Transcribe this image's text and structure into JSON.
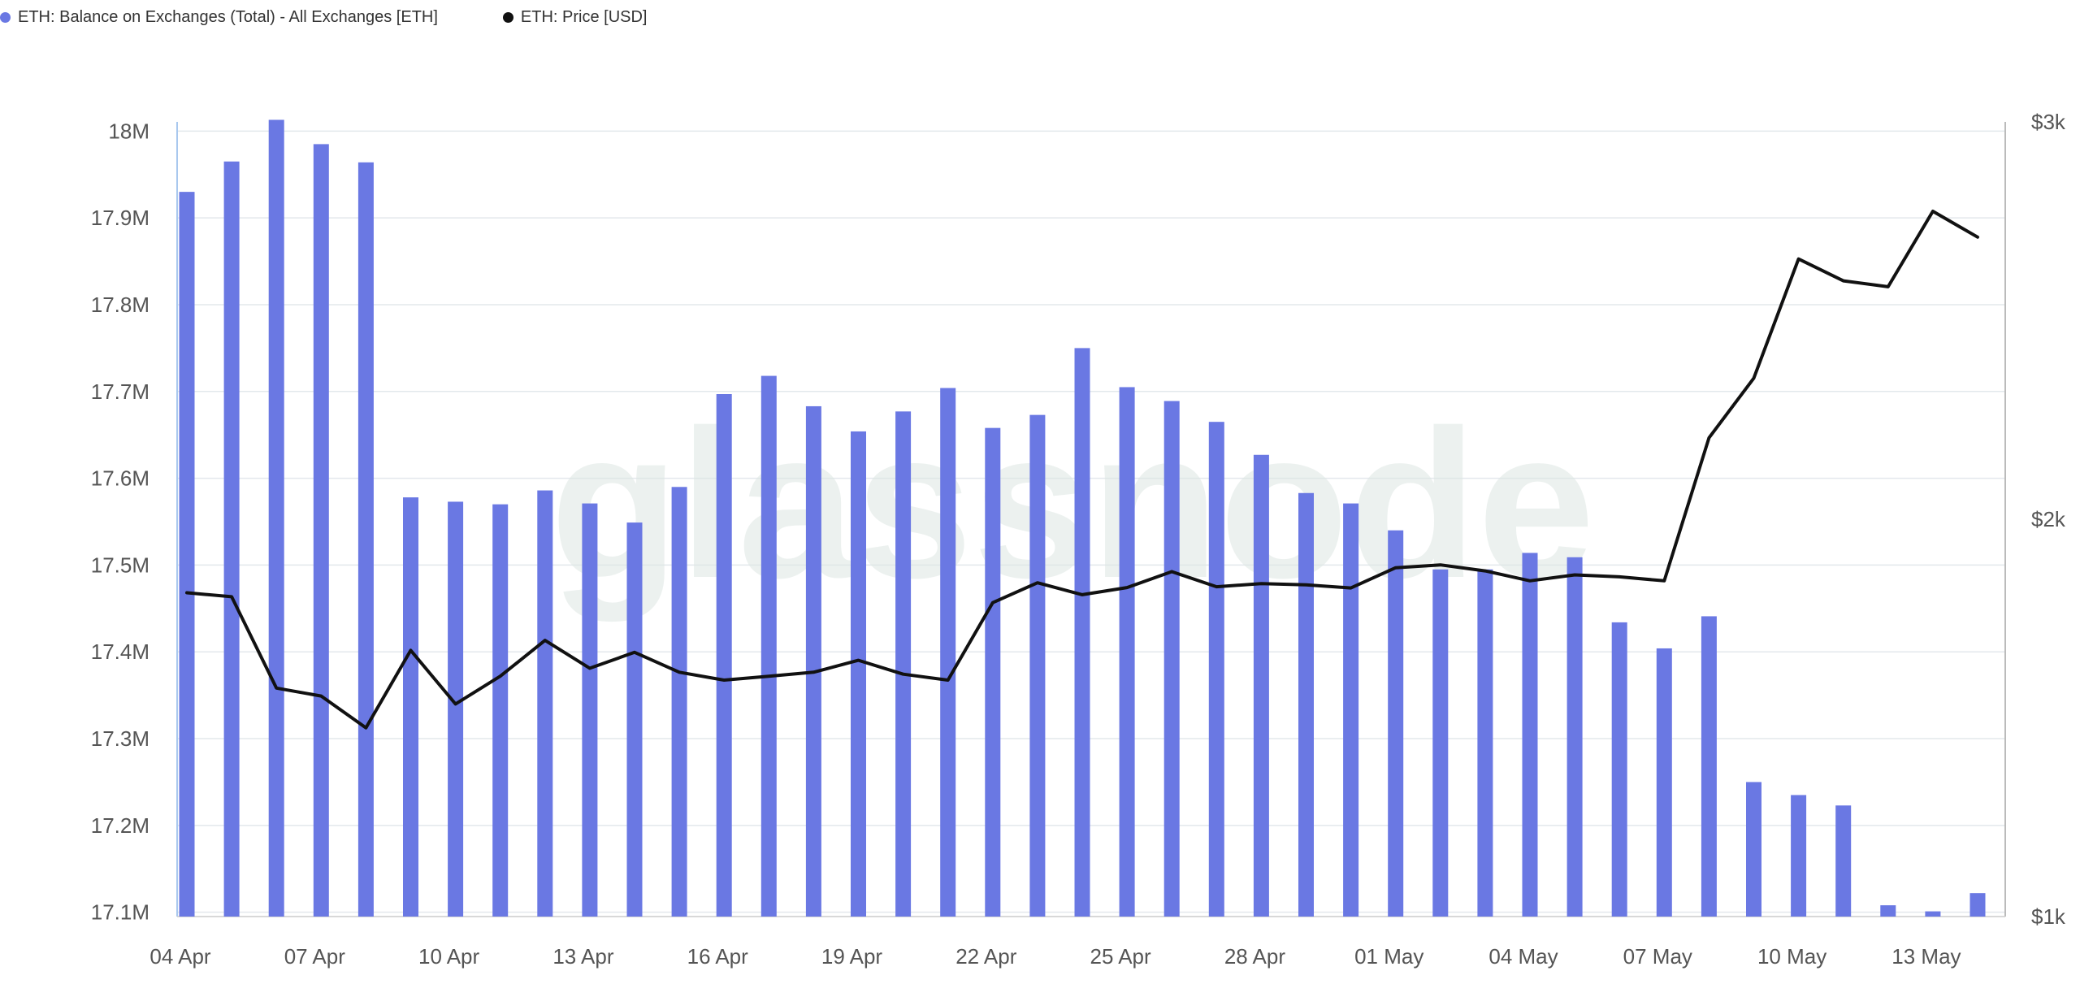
{
  "legend": {
    "bar_series": "ETH: Balance on Exchanges (Total) - All Exchanges [ETH]",
    "line_series": "ETH: Price [USD]"
  },
  "watermark": "glassnode",
  "colors": {
    "bar": "#6A78E3",
    "line": "#111111",
    "grid": "#E3E8EC",
    "legend_line_dot": "#111111"
  },
  "chart_data": {
    "type": "bar+line",
    "x": [
      "04 Apr",
      "05 Apr",
      "06 Apr",
      "07 Apr",
      "08 Apr",
      "09 Apr",
      "10 Apr",
      "11 Apr",
      "12 Apr",
      "13 Apr",
      "14 Apr",
      "15 Apr",
      "16 Apr",
      "17 Apr",
      "18 Apr",
      "19 Apr",
      "20 Apr",
      "21 Apr",
      "22 Apr",
      "23 Apr",
      "24 Apr",
      "25 Apr",
      "26 Apr",
      "27 Apr",
      "28 Apr",
      "29 Apr",
      "30 Apr",
      "01 May",
      "02 May",
      "03 May",
      "04 May",
      "05 May",
      "06 May",
      "07 May",
      "08 May",
      "09 May",
      "10 May",
      "11 May",
      "12 May",
      "13 May",
      "14 May"
    ],
    "x_ticks": [
      "04 Apr",
      "07 Apr",
      "10 Apr",
      "13 Apr",
      "16 Apr",
      "19 Apr",
      "22 Apr",
      "25 Apr",
      "28 Apr",
      "01 May",
      "04 May",
      "07 May",
      "10 May",
      "13 May"
    ],
    "series": [
      {
        "name": "ETH: Balance on Exchanges (Total) - All Exchanges [ETH]",
        "kind": "bar",
        "axis": "left",
        "values": [
          17.93,
          17.965,
          18.013,
          17.985,
          17.964,
          17.578,
          17.573,
          17.57,
          17.586,
          17.571,
          17.549,
          17.59,
          17.697,
          17.718,
          17.683,
          17.654,
          17.677,
          17.704,
          17.658,
          17.673,
          17.75,
          17.705,
          17.689,
          17.665,
          17.627,
          17.583,
          17.571,
          17.54,
          17.495,
          17.495,
          17.514,
          17.509,
          17.434,
          17.404,
          17.441,
          17.25,
          17.235,
          17.223,
          17.108,
          17.101,
          17.122
        ]
      },
      {
        "name": "ETH: Price [USD]",
        "kind": "line",
        "axis": "right",
        "values": [
          1815,
          1805,
          1575,
          1555,
          1475,
          1670,
          1535,
          1605,
          1695,
          1625,
          1665,
          1615,
          1595,
          1605,
          1615,
          1645,
          1610,
          1595,
          1790,
          1840,
          1810,
          1828,
          1868,
          1830,
          1838,
          1835,
          1827,
          1878,
          1885,
          1870,
          1845,
          1860,
          1855,
          1845,
          2205,
          2355,
          2655,
          2600,
          2585,
          2775,
          2710
        ]
      }
    ],
    "y_left": {
      "ticks": [
        "18M",
        "17.9M",
        "17.8M",
        "17.7M",
        "17.6M",
        "17.5M",
        "17.4M",
        "17.3M",
        "17.2M",
        "17.1M"
      ],
      "min": 17.095,
      "max": 18.02,
      "unit": "M"
    },
    "y_right": {
      "ticks": [
        "$3k",
        "$2k",
        "$1k"
      ],
      "min": 1000,
      "max": 3000
    },
    "grid": true,
    "legend_position": "top-left"
  }
}
